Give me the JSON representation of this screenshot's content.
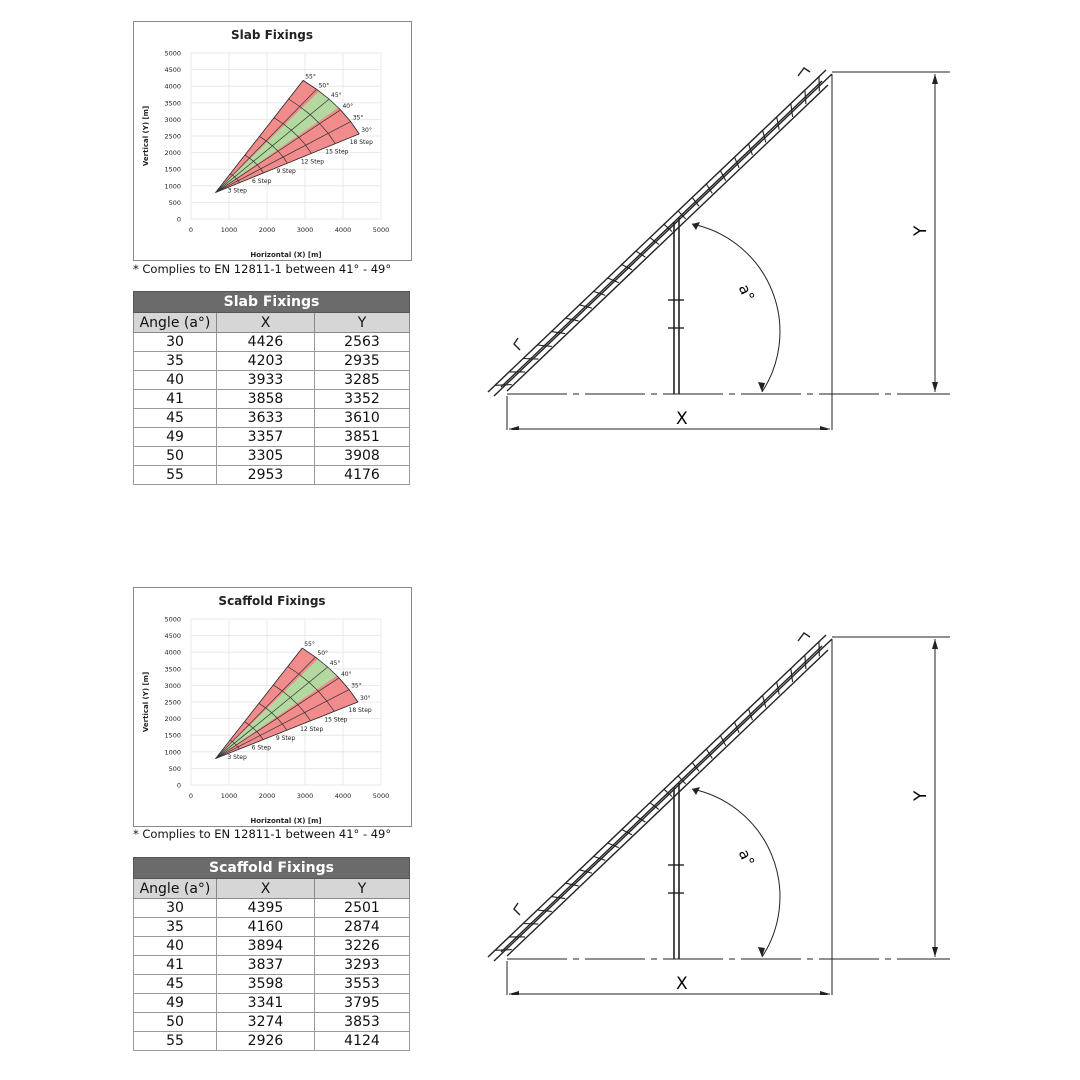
{
  "panels": [
    {
      "title": "Slab Fixings",
      "note": "* Complies to EN 12811-1 between 41° - 49°",
      "table": {
        "title": "Slab Fixings",
        "headers": [
          "Angle (a°)",
          "X",
          "Y"
        ],
        "rows": [
          [
            "30",
            "4426",
            "2563"
          ],
          [
            "35",
            "4203",
            "2935"
          ],
          [
            "40",
            "3933",
            "3285"
          ],
          [
            "41",
            "3858",
            "3352"
          ],
          [
            "45",
            "3633",
            "3610"
          ],
          [
            "49",
            "3357",
            "3851"
          ],
          [
            "50",
            "3305",
            "3908"
          ],
          [
            "55",
            "2953",
            "4176"
          ]
        ]
      },
      "diagram": {
        "x_label": "X",
        "y_label": "Y",
        "angle_label": "a°"
      }
    },
    {
      "title": "Scaffold Fixings",
      "note": "* Complies to EN 12811-1 between 41° - 49°",
      "table": {
        "title": "Scaffold Fixings",
        "headers": [
          "Angle (a°)",
          "X",
          "Y"
        ],
        "rows": [
          [
            "30",
            "4395",
            "2501"
          ],
          [
            "35",
            "4160",
            "2874"
          ],
          [
            "40",
            "3894",
            "3226"
          ],
          [
            "41",
            "3837",
            "3293"
          ],
          [
            "45",
            "3598",
            "3553"
          ],
          [
            "49",
            "3341",
            "3795"
          ],
          [
            "50",
            "3274",
            "3853"
          ],
          [
            "55",
            "2926",
            "4124"
          ]
        ]
      },
      "diagram": {
        "x_label": "X",
        "y_label": "Y",
        "angle_label": "a°"
      }
    }
  ],
  "chart_data": [
    {
      "type": "area",
      "title": "Slab Fixings",
      "xlabel": "Horizontal (X) [m]",
      "ylabel": "Vertical (Y) [m]",
      "xlim": [
        0,
        5000
      ],
      "ylim": [
        0,
        5000
      ],
      "xticks": [
        "0",
        "1000",
        "2000",
        "3000",
        "4000",
        "5000"
      ],
      "yticks": [
        "0",
        "500",
        "1000",
        "1500",
        "2000",
        "2500",
        "3000",
        "3500",
        "4000",
        "4500",
        "5000"
      ],
      "grid": true,
      "origin": [
        650,
        800
      ],
      "angles": [
        "30",
        "35",
        "40",
        "45",
        "50",
        "55"
      ],
      "angle_labels": [
        "30°",
        "35°",
        "40°",
        "45°",
        "50°",
        "55°"
      ],
      "ends": [
        [
          4426,
          2563
        ],
        [
          4203,
          2935
        ],
        [
          3933,
          3285
        ],
        [
          3633,
          3610
        ],
        [
          3305,
          3908
        ],
        [
          2953,
          4176
        ]
      ],
      "steps": [
        "3 Step",
        "6 Step",
        "9 Step",
        "12 Step",
        "15 Step",
        "18 Step"
      ],
      "compliant_range": [
        "41",
        "49"
      ],
      "colors": {
        "outer": "#f28b8b",
        "compliant": "#b3d9a0"
      }
    },
    {
      "type": "area",
      "title": "Scaffold Fixings",
      "xlabel": "Horizontal (X) [m]",
      "ylabel": "Vertical (Y) [m]",
      "xlim": [
        0,
        5000
      ],
      "ylim": [
        0,
        5000
      ],
      "xticks": [
        "0",
        "1000",
        "2000",
        "3000",
        "4000",
        "5000"
      ],
      "yticks": [
        "0",
        "500",
        "1000",
        "1500",
        "2000",
        "2500",
        "3000",
        "3500",
        "4000",
        "4500",
        "5000"
      ],
      "grid": true,
      "origin": [
        650,
        800
      ],
      "angles": [
        "30",
        "35",
        "40",
        "45",
        "50",
        "55"
      ],
      "angle_labels": [
        "30°",
        "35°",
        "40°",
        "45°",
        "50°",
        "55°"
      ],
      "ends": [
        [
          4395,
          2501
        ],
        [
          4160,
          2874
        ],
        [
          3894,
          3226
        ],
        [
          3598,
          3553
        ],
        [
          3274,
          3853
        ],
        [
          2926,
          4124
        ]
      ],
      "steps": [
        "3 Step",
        "6 Step",
        "9 Step",
        "12 Step",
        "15 Step",
        "18 Step"
      ],
      "compliant_range": [
        "41",
        "49"
      ],
      "colors": {
        "outer": "#f28b8b",
        "compliant": "#b3d9a0"
      }
    }
  ]
}
